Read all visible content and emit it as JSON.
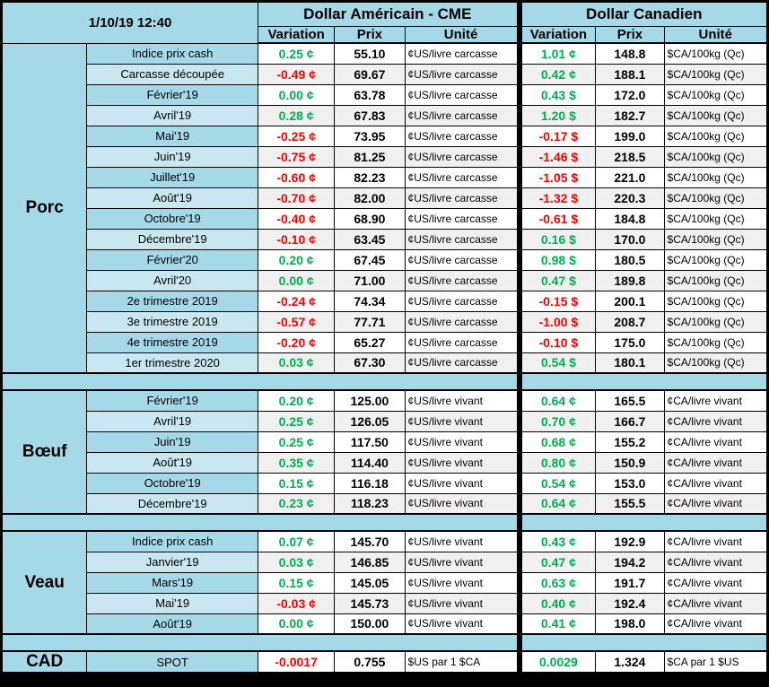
{
  "colors": {
    "positive": "#00B050",
    "negative": "#FF0000",
    "panel_blue": "#A6D9E8",
    "panel_blue_alt": "#C8E7F1",
    "zebra_gray": "#F0F0F0"
  },
  "header": {
    "timestamp": "1/10/19 12:40",
    "usd_title": "Dollar Américain - CME",
    "cad_title": "Dollar Canadien",
    "columns": [
      "Variation",
      "Prix",
      "Unité"
    ]
  },
  "sections": [
    {
      "key": "porc",
      "name": "Porc",
      "rows": [
        {
          "label": "Indice prix cash",
          "us_var": "0.25 ¢",
          "us_prix": "55.10",
          "us_unit": "¢US/livre carcasse",
          "ca_var": "1.01 ¢",
          "ca_prix": "148.8",
          "ca_unit": "$CA/100kg (Qc)"
        },
        {
          "label": "Carcasse découpée",
          "us_var": "-0.49 ¢",
          "us_prix": "69.67",
          "us_unit": "¢US/livre carcasse",
          "ca_var": "0.42 ¢",
          "ca_prix": "188.1",
          "ca_unit": "$CA/100kg (Qc)"
        },
        {
          "label": "Février'19",
          "us_var": "0.00 ¢",
          "us_prix": "63.78",
          "us_unit": "¢US/livre carcasse",
          "ca_var": "0.43 $",
          "ca_prix": "172.0",
          "ca_unit": "$CA/100kg (Qc)"
        },
        {
          "label": "Avril'19",
          "us_var": "0.28 ¢",
          "us_prix": "67.83",
          "us_unit": "¢US/livre carcasse",
          "ca_var": "1.20 $",
          "ca_prix": "182.7",
          "ca_unit": "$CA/100kg (Qc)"
        },
        {
          "label": "Mai'19",
          "us_var": "-0.25 ¢",
          "us_prix": "73.95",
          "us_unit": "¢US/livre carcasse",
          "ca_var": "-0.17 $",
          "ca_prix": "199.0",
          "ca_unit": "$CA/100kg (Qc)"
        },
        {
          "label": "Juin'19",
          "us_var": "-0.75 ¢",
          "us_prix": "81.25",
          "us_unit": "¢US/livre carcasse",
          "ca_var": "-1.46 $",
          "ca_prix": "218.5",
          "ca_unit": "$CA/100kg (Qc)"
        },
        {
          "label": "Juillet'19",
          "us_var": "-0.60 ¢",
          "us_prix": "82.23",
          "us_unit": "¢US/livre carcasse",
          "ca_var": "-1.05 $",
          "ca_prix": "221.0",
          "ca_unit": "$CA/100kg (Qc)"
        },
        {
          "label": "Août'19",
          "us_var": "-0.70 ¢",
          "us_prix": "82.00",
          "us_unit": "¢US/livre carcasse",
          "ca_var": "-1.32 $",
          "ca_prix": "220.3",
          "ca_unit": "$CA/100kg (Qc)"
        },
        {
          "label": "Octobre'19",
          "us_var": "-0.40 ¢",
          "us_prix": "68.90",
          "us_unit": "¢US/livre carcasse",
          "ca_var": "-0.61 $",
          "ca_prix": "184.8",
          "ca_unit": "$CA/100kg (Qc)"
        },
        {
          "label": "Décembre'19",
          "us_var": "-0.10 ¢",
          "us_prix": "63.45",
          "us_unit": "¢US/livre carcasse",
          "ca_var": "0.16 $",
          "ca_prix": "170.0",
          "ca_unit": "$CA/100kg (Qc)"
        },
        {
          "label": "Février'20",
          "us_var": "0.20 ¢",
          "us_prix": "67.45",
          "us_unit": "¢US/livre carcasse",
          "ca_var": "0.98 $",
          "ca_prix": "180.5",
          "ca_unit": "$CA/100kg (Qc)"
        },
        {
          "label": "Avril'20",
          "us_var": "0.00 ¢",
          "us_prix": "71.00",
          "us_unit": "¢US/livre carcasse",
          "ca_var": "0.47 $",
          "ca_prix": "189.8",
          "ca_unit": "$CA/100kg (Qc)"
        },
        {
          "label": "2e trimestre 2019",
          "us_var": "-0.24 ¢",
          "us_prix": "74.34",
          "us_unit": "¢US/livre carcasse",
          "ca_var": "-0.15 $",
          "ca_prix": "200.1",
          "ca_unit": "$CA/100kg (Qc)"
        },
        {
          "label": "3e trimestre 2019",
          "us_var": "-0.57 ¢",
          "us_prix": "77.71",
          "us_unit": "¢US/livre carcasse",
          "ca_var": "-1.00 $",
          "ca_prix": "208.7",
          "ca_unit": "$CA/100kg (Qc)"
        },
        {
          "label": "4e trimestre 2019",
          "us_var": "-0.20 ¢",
          "us_prix": "65.27",
          "us_unit": "¢US/livre carcasse",
          "ca_var": "-0.10 $",
          "ca_prix": "175.0",
          "ca_unit": "$CA/100kg (Qc)"
        },
        {
          "label": "1er trimestre 2020",
          "us_var": "0.03 ¢",
          "us_prix": "67.30",
          "us_unit": "¢US/livre carcasse",
          "ca_var": "0.54 $",
          "ca_prix": "180.1",
          "ca_unit": "$CA/100kg (Qc)"
        }
      ]
    },
    {
      "key": "boeuf",
      "name": "Bœuf",
      "rows": [
        {
          "label": "Février'19",
          "us_var": "0.20 ¢",
          "us_prix": "125.00",
          "us_unit": "¢US/livre vivant",
          "ca_var": "0.64 ¢",
          "ca_prix": "165.5",
          "ca_unit": "¢CA/livre vivant"
        },
        {
          "label": "Avril'19",
          "us_var": "0.25 ¢",
          "us_prix": "126.05",
          "us_unit": "¢US/livre vivant",
          "ca_var": "0.70 ¢",
          "ca_prix": "166.7",
          "ca_unit": "¢CA/livre vivant"
        },
        {
          "label": "Juin'19",
          "us_var": "0.25 ¢",
          "us_prix": "117.50",
          "us_unit": "¢US/livre vivant",
          "ca_var": "0.68 ¢",
          "ca_prix": "155.2",
          "ca_unit": "¢CA/livre vivant"
        },
        {
          "label": "Août'19",
          "us_var": "0.35 ¢",
          "us_prix": "114.40",
          "us_unit": "¢US/livre vivant",
          "ca_var": "0.80 ¢",
          "ca_prix": "150.9",
          "ca_unit": "¢CA/livre vivant"
        },
        {
          "label": "Octobre'19",
          "us_var": "0.15 ¢",
          "us_prix": "116.18",
          "us_unit": "¢US/livre vivant",
          "ca_var": "0.54 ¢",
          "ca_prix": "153.0",
          "ca_unit": "¢CA/livre vivant"
        },
        {
          "label": "Décembre'19",
          "us_var": "0.23 ¢",
          "us_prix": "118.23",
          "us_unit": "¢US/livre vivant",
          "ca_var": "0.64 ¢",
          "ca_prix": "155.5",
          "ca_unit": "¢CA/livre vivant"
        }
      ]
    },
    {
      "key": "veau",
      "name": "Veau",
      "rows": [
        {
          "label": "Indice prix cash",
          "us_var": "0.07 ¢",
          "us_prix": "145.70",
          "us_unit": "¢US/livre vivant",
          "ca_var": "0.43 ¢",
          "ca_prix": "192.9",
          "ca_unit": "¢CA/livre vivant"
        },
        {
          "label": "Janvier'19",
          "us_var": "0.03 ¢",
          "us_prix": "146.85",
          "us_unit": "¢US/livre vivant",
          "ca_var": "0.47 ¢",
          "ca_prix": "194.2",
          "ca_unit": "¢CA/livre vivant"
        },
        {
          "label": "Mars'19",
          "us_var": "0.15 ¢",
          "us_prix": "145.05",
          "us_unit": "¢US/livre vivant",
          "ca_var": "0.63 ¢",
          "ca_prix": "191.7",
          "ca_unit": "¢CA/livre vivant"
        },
        {
          "label": "Mai'19",
          "us_var": "-0.03 ¢",
          "us_prix": "145.73",
          "us_unit": "¢US/livre vivant",
          "ca_var": "0.40 ¢",
          "ca_prix": "192.4",
          "ca_unit": "¢CA/livre vivant"
        },
        {
          "label": "Août'19",
          "us_var": "0.00 ¢",
          "us_prix": "150.00",
          "us_unit": "¢US/livre vivant",
          "ca_var": "0.41 ¢",
          "ca_prix": "198.0",
          "ca_unit": "¢CA/livre vivant"
        }
      ]
    },
    {
      "key": "cad",
      "name": "CAD",
      "rows": [
        {
          "label": "SPOT",
          "us_var": "-0.0017",
          "us_prix": "0.755",
          "us_unit": "$US par 1 $CA",
          "ca_var": "0.0029",
          "ca_prix": "1.324",
          "ca_unit": "$CA par 1 $US"
        }
      ]
    }
  ]
}
